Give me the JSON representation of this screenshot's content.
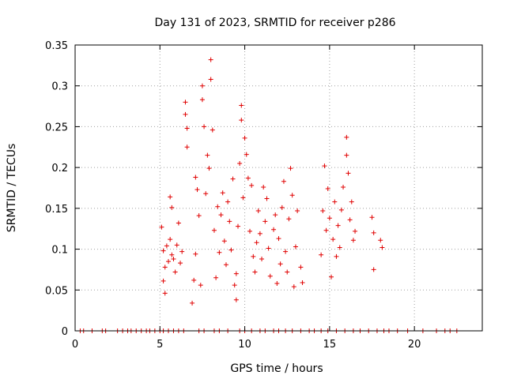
{
  "chart_data": {
    "type": "scatter",
    "title": "Day 131 of 2023, SRMTID for receiver p286",
    "xlabel": "GPS time / hours",
    "ylabel": "SRMTID / TECUs",
    "xlim": [
      0,
      24
    ],
    "ylim": [
      0,
      0.35
    ],
    "xticks": [
      0,
      5,
      10,
      15,
      20
    ],
    "yticks": [
      0,
      0.05,
      0.1,
      0.15,
      0.2,
      0.25,
      0.3,
      0.35
    ],
    "xtick_labels": [
      "0",
      "5",
      "10",
      "15",
      "20"
    ],
    "ytick_labels": [
      "0",
      "0.05",
      "0.1",
      "0.15",
      "0.2",
      "0.25",
      "0.3",
      "0.35"
    ],
    "grid": true,
    "marker": "plus",
    "series": [
      {
        "name": "SRMTID",
        "color": "#e00000",
        "points": [
          [
            5.1,
            0.127
          ],
          [
            5.2,
            0.098
          ],
          [
            5.2,
            0.061
          ],
          [
            5.3,
            0.046
          ],
          [
            5.3,
            0.078
          ],
          [
            5.4,
            0.104
          ],
          [
            5.5,
            0.085
          ],
          [
            5.6,
            0.112
          ],
          [
            5.6,
            0.164
          ],
          [
            5.7,
            0.151
          ],
          [
            5.7,
            0.093
          ],
          [
            5.8,
            0.088
          ],
          [
            5.9,
            0.072
          ],
          [
            6.0,
            0.105
          ],
          [
            6.1,
            0.132
          ],
          [
            6.2,
            0.083
          ],
          [
            6.3,
            0.097
          ],
          [
            6.5,
            0.28
          ],
          [
            6.5,
            0.265
          ],
          [
            6.6,
            0.248
          ],
          [
            6.6,
            0.225
          ],
          [
            6.9,
            0.034
          ],
          [
            7.0,
            0.062
          ],
          [
            7.1,
            0.188
          ],
          [
            7.1,
            0.094
          ],
          [
            7.2,
            0.173
          ],
          [
            7.3,
            0.141
          ],
          [
            7.4,
            0.056
          ],
          [
            7.5,
            0.3
          ],
          [
            7.5,
            0.283
          ],
          [
            7.6,
            0.25
          ],
          [
            7.7,
            0.168
          ],
          [
            7.8,
            0.215
          ],
          [
            7.9,
            0.199
          ],
          [
            8.0,
            0.332
          ],
          [
            8.0,
            0.308
          ],
          [
            8.1,
            0.246
          ],
          [
            8.2,
            0.123
          ],
          [
            8.3,
            0.065
          ],
          [
            8.4,
            0.152
          ],
          [
            8.5,
            0.096
          ],
          [
            8.6,
            0.142
          ],
          [
            8.7,
            0.169
          ],
          [
            8.8,
            0.11
          ],
          [
            8.9,
            0.081
          ],
          [
            9.0,
            0.158
          ],
          [
            9.1,
            0.134
          ],
          [
            9.2,
            0.099
          ],
          [
            9.3,
            0.186
          ],
          [
            9.4,
            0.056
          ],
          [
            9.5,
            0.038
          ],
          [
            9.5,
            0.07
          ],
          [
            9.6,
            0.128
          ],
          [
            9.7,
            0.205
          ],
          [
            9.8,
            0.276
          ],
          [
            9.8,
            0.258
          ],
          [
            9.9,
            0.163
          ],
          [
            10.0,
            0.236
          ],
          [
            10.1,
            0.216
          ],
          [
            10.2,
            0.187
          ],
          [
            10.3,
            0.122
          ],
          [
            10.4,
            0.178
          ],
          [
            10.5,
            0.091
          ],
          [
            10.6,
            0.072
          ],
          [
            10.7,
            0.108
          ],
          [
            10.8,
            0.147
          ],
          [
            10.9,
            0.119
          ],
          [
            11.0,
            0.088
          ],
          [
            11.1,
            0.176
          ],
          [
            11.2,
            0.134
          ],
          [
            11.3,
            0.162
          ],
          [
            11.4,
            0.101
          ],
          [
            11.5,
            0.067
          ],
          [
            11.7,
            0.124
          ],
          [
            11.8,
            0.142
          ],
          [
            11.9,
            0.058
          ],
          [
            12.0,
            0.113
          ],
          [
            12.1,
            0.082
          ],
          [
            12.2,
            0.151
          ],
          [
            12.3,
            0.183
          ],
          [
            12.4,
            0.097
          ],
          [
            12.5,
            0.072
          ],
          [
            12.6,
            0.137
          ],
          [
            12.7,
            0.199
          ],
          [
            12.8,
            0.166
          ],
          [
            12.9,
            0.054
          ],
          [
            13.0,
            0.103
          ],
          [
            13.1,
            0.147
          ],
          [
            13.3,
            0.078
          ],
          [
            13.4,
            0.059
          ],
          [
            14.5,
            0.093
          ],
          [
            14.6,
            0.147
          ],
          [
            14.7,
            0.202
          ],
          [
            14.8,
            0.123
          ],
          [
            14.9,
            0.174
          ],
          [
            15.0,
            0.138
          ],
          [
            15.1,
            0.066
          ],
          [
            15.2,
            0.112
          ],
          [
            15.3,
            0.158
          ],
          [
            15.4,
            0.091
          ],
          [
            15.5,
            0.129
          ],
          [
            15.6,
            0.102
          ],
          [
            15.7,
            0.148
          ],
          [
            15.8,
            0.176
          ],
          [
            16.0,
            0.237
          ],
          [
            16.0,
            0.215
          ],
          [
            16.1,
            0.193
          ],
          [
            16.2,
            0.136
          ],
          [
            16.3,
            0.158
          ],
          [
            16.4,
            0.111
          ],
          [
            16.5,
            0.122
          ],
          [
            17.5,
            0.139
          ],
          [
            17.6,
            0.12
          ],
          [
            17.6,
            0.075
          ],
          [
            18.0,
            0.111
          ],
          [
            18.1,
            0.102
          ],
          [
            0.3,
            0
          ],
          [
            0.5,
            0
          ],
          [
            1.0,
            0
          ],
          [
            1.6,
            0
          ],
          [
            1.8,
            0
          ],
          [
            2.5,
            0
          ],
          [
            2.8,
            0
          ],
          [
            3.1,
            0
          ],
          [
            3.3,
            0
          ],
          [
            3.6,
            0
          ],
          [
            3.9,
            0
          ],
          [
            4.2,
            0
          ],
          [
            4.4,
            0
          ],
          [
            4.7,
            0
          ],
          [
            5.0,
            0
          ],
          [
            5.2,
            0
          ],
          [
            5.5,
            0
          ],
          [
            5.8,
            0
          ],
          [
            6.1,
            0
          ],
          [
            6.4,
            0
          ],
          [
            7.3,
            0
          ],
          [
            7.6,
            0
          ],
          [
            8.2,
            0
          ],
          [
            8.5,
            0
          ],
          [
            9.0,
            0
          ],
          [
            9.7,
            0
          ],
          [
            10.0,
            0
          ],
          [
            10.4,
            0
          ],
          [
            10.9,
            0
          ],
          [
            11.2,
            0
          ],
          [
            11.7,
            0
          ],
          [
            12.0,
            0
          ],
          [
            12.4,
            0
          ],
          [
            12.8,
            0
          ],
          [
            13.3,
            0
          ],
          [
            13.8,
            0
          ],
          [
            14.1,
            0
          ],
          [
            14.5,
            0
          ],
          [
            14.9,
            0
          ],
          [
            15.4,
            0
          ],
          [
            15.9,
            0
          ],
          [
            16.4,
            0
          ],
          [
            16.8,
            0
          ],
          [
            17.3,
            0
          ],
          [
            17.8,
            0
          ],
          [
            18.2,
            0
          ],
          [
            18.5,
            0
          ],
          [
            19.0,
            0
          ],
          [
            19.6,
            0
          ],
          [
            20.5,
            0
          ],
          [
            21.3,
            0
          ],
          [
            21.8,
            0
          ],
          [
            22.1,
            0
          ],
          [
            22.5,
            0
          ]
        ]
      }
    ]
  }
}
